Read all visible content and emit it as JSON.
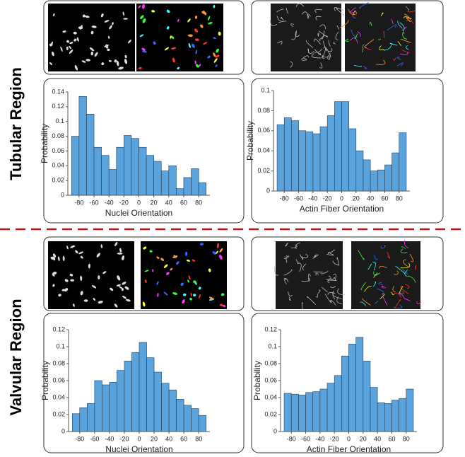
{
  "regions": [
    "Tubular Region",
    "Valvular Region"
  ],
  "chart_data": [
    {
      "type": "histogram",
      "xlabel": "Nuclei Orientation",
      "ylabel": "Probability",
      "color": "#5ba3dc",
      "bins": [
        -90,
        -80,
        -70,
        -60,
        -50,
        -40,
        -30,
        -20,
        -10,
        0,
        10,
        20,
        30,
        40,
        50,
        60,
        70,
        80,
        90
      ],
      "values": [
        0.08,
        0.134,
        0.11,
        0.065,
        0.054,
        0.035,
        0.065,
        0.081,
        0.077,
        0.065,
        0.054,
        0.046,
        0.033,
        0.04,
        0.009,
        0.024,
        0.036,
        0.017
      ],
      "xlim": [
        -95,
        95
      ],
      "xticks": [
        -80,
        -60,
        -40,
        -20,
        0,
        20,
        40,
        60,
        80
      ],
      "ylim": [
        0,
        0.14
      ],
      "yticks": [
        0,
        0.02,
        0.04,
        0.06,
        0.08,
        0.1,
        0.12,
        0.14
      ]
    },
    {
      "type": "histogram",
      "xlabel": "Actin Fiber Orientation",
      "ylabel": "Probability",
      "color": "#5ba3dc",
      "bins": [
        -90,
        -80,
        -70,
        -60,
        -50,
        -40,
        -30,
        -20,
        -10,
        0,
        10,
        20,
        30,
        40,
        50,
        60,
        70,
        80,
        90
      ],
      "values": [
        0.066,
        0.073,
        0.07,
        0.06,
        0.059,
        0.057,
        0.064,
        0.075,
        0.089,
        0.089,
        0.062,
        0.04,
        0.031,
        0.02,
        0.021,
        0.026,
        0.038,
        0.058
      ],
      "xlim": [
        -95,
        95
      ],
      "xticks": [
        -80,
        -60,
        -40,
        -20,
        0,
        20,
        40,
        60,
        80
      ],
      "ylim": [
        0,
        0.1
      ],
      "yticks": [
        0,
        0.02,
        0.04,
        0.06,
        0.08,
        0.1
      ]
    },
    {
      "type": "histogram",
      "xlabel": "Nuclei Orientation",
      "ylabel": "Probability",
      "color": "#5ba3dc",
      "bins": [
        -90,
        -80,
        -70,
        -60,
        -50,
        -40,
        -30,
        -20,
        -10,
        0,
        10,
        20,
        30,
        40,
        50,
        60,
        70,
        80,
        90
      ],
      "values": [
        0.021,
        0.028,
        0.033,
        0.06,
        0.055,
        0.058,
        0.072,
        0.083,
        0.093,
        0.105,
        0.087,
        0.07,
        0.057,
        0.049,
        0.038,
        0.031,
        0.027,
        0.019
      ],
      "xlim": [
        -95,
        95
      ],
      "xticks": [
        -80,
        -60,
        -40,
        -20,
        0,
        20,
        40,
        60,
        80
      ],
      "ylim": [
        0,
        0.12
      ],
      "yticks": [
        0,
        0.02,
        0.04,
        0.06,
        0.08,
        0.1,
        0.12
      ]
    },
    {
      "type": "histogram",
      "xlabel": "Actin Fiber Orientation",
      "ylabel": "Probability",
      "color": "#5ba3dc",
      "bins": [
        -90,
        -80,
        -70,
        -60,
        -50,
        -40,
        -30,
        -20,
        -10,
        0,
        10,
        20,
        30,
        40,
        50,
        60,
        70,
        80,
        90
      ],
      "values": [
        0.045,
        0.044,
        0.043,
        0.046,
        0.047,
        0.05,
        0.057,
        0.066,
        0.089,
        0.103,
        0.111,
        0.083,
        0.052,
        0.034,
        0.033,
        0.037,
        0.039,
        0.05
      ],
      "xlim": [
        -95,
        95
      ],
      "xticks": [
        -80,
        -60,
        -40,
        -20,
        0,
        20,
        40,
        60,
        80
      ],
      "ylim": [
        0,
        0.12
      ],
      "yticks": [
        0,
        0.02,
        0.04,
        0.06,
        0.08,
        0.1,
        0.12
      ]
    }
  ]
}
